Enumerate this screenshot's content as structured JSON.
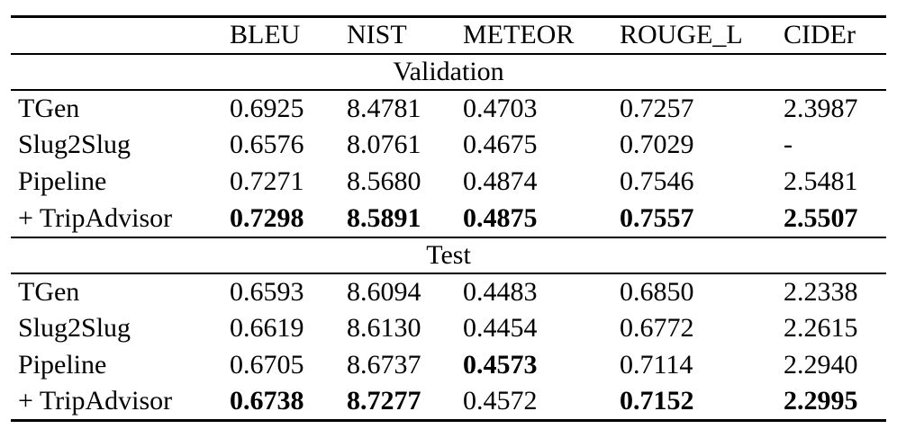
{
  "page": {
    "background_color": "#ffffff",
    "text_color": "#000000"
  },
  "table": {
    "row_label_header": "",
    "columns": [
      "BLEU",
      "NIST",
      "METEOR",
      "ROUGE_L",
      "CIDEr"
    ],
    "sections": [
      {
        "title": "Validation",
        "rows": [
          {
            "label": "TGen",
            "values": [
              "0.6925",
              "8.4781",
              "0.4703",
              "0.7257",
              "2.3987"
            ],
            "bold": [
              false,
              false,
              false,
              false,
              false
            ]
          },
          {
            "label": "Slug2Slug",
            "values": [
              "0.6576",
              "8.0761",
              "0.4675",
              "0.7029",
              "-"
            ],
            "bold": [
              false,
              false,
              false,
              false,
              false
            ]
          },
          {
            "label": "Pipeline",
            "values": [
              "0.7271",
              "8.5680",
              "0.4874",
              "0.7546",
              "2.5481"
            ],
            "bold": [
              false,
              false,
              false,
              false,
              false
            ]
          },
          {
            "label": "+ TripAdvisor",
            "values": [
              "0.7298",
              "8.5891",
              "0.4875",
              "0.7557",
              "2.5507"
            ],
            "bold": [
              true,
              true,
              true,
              true,
              true
            ]
          }
        ]
      },
      {
        "title": "Test",
        "rows": [
          {
            "label": "TGen",
            "values": [
              "0.6593",
              "8.6094",
              "0.4483",
              "0.6850",
              "2.2338"
            ],
            "bold": [
              false,
              false,
              false,
              false,
              false
            ]
          },
          {
            "label": "Slug2Slug",
            "values": [
              "0.6619",
              "8.6130",
              "0.4454",
              "0.6772",
              "2.2615"
            ],
            "bold": [
              false,
              false,
              false,
              false,
              false
            ]
          },
          {
            "label": "Pipeline",
            "values": [
              "0.6705",
              "8.6737",
              "0.4573",
              "0.7114",
              "2.2940"
            ],
            "bold": [
              false,
              false,
              true,
              false,
              false
            ]
          },
          {
            "label": "+ TripAdvisor",
            "values": [
              "0.6738",
              "8.7277",
              "0.4572",
              "0.7152",
              "2.2995"
            ],
            "bold": [
              true,
              true,
              false,
              true,
              true
            ]
          }
        ]
      }
    ]
  }
}
